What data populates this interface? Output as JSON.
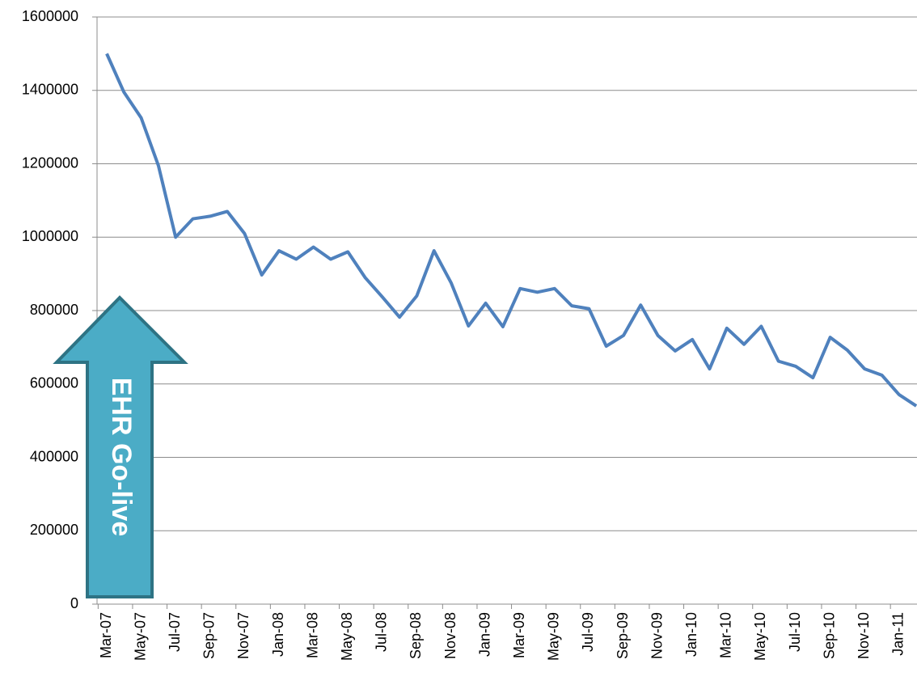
{
  "chart_data": {
    "type": "line",
    "annotation": "EHR Go-live",
    "categories": [
      "Mar-07",
      null,
      "May-07",
      null,
      "Jul-07",
      null,
      "Sep-07",
      null,
      "Nov-07",
      null,
      "Jan-08",
      null,
      "Mar-08",
      null,
      "May-08",
      null,
      "Jul-08",
      null,
      "Sep-08",
      null,
      "Nov-08",
      null,
      "Jan-09",
      null,
      "Mar-09",
      null,
      "May-09",
      null,
      "Jul-09",
      null,
      "Sep-09",
      null,
      "Nov-09",
      null,
      "Jan-10",
      null,
      "Mar-10",
      null,
      "May-10",
      null,
      "Jul-10",
      null,
      "Sep-10",
      null,
      "Nov-10",
      null,
      "Jan-11",
      null
    ],
    "values": [
      1500000,
      1395000,
      1325000,
      1195000,
      1000000,
      1050000,
      1057000,
      1070000,
      1010000,
      897000,
      963000,
      940000,
      973000,
      940000,
      960000,
      890000,
      837000,
      782000,
      840000,
      963000,
      875000,
      758000,
      820000,
      756000,
      860000,
      850000,
      860000,
      813000,
      805000,
      703000,
      732000,
      815000,
      732000,
      690000,
      721000,
      641000,
      752000,
      708000,
      757000,
      662000,
      648000,
      617000,
      727000,
      692000,
      641000,
      624000,
      571000,
      540000
    ],
    "color": "#4f81bd",
    "ylim": [
      0,
      1600000
    ],
    "yticks": [
      0,
      200000,
      400000,
      600000,
      800000,
      1000000,
      1200000,
      1400000,
      1600000
    ],
    "grid": true
  }
}
